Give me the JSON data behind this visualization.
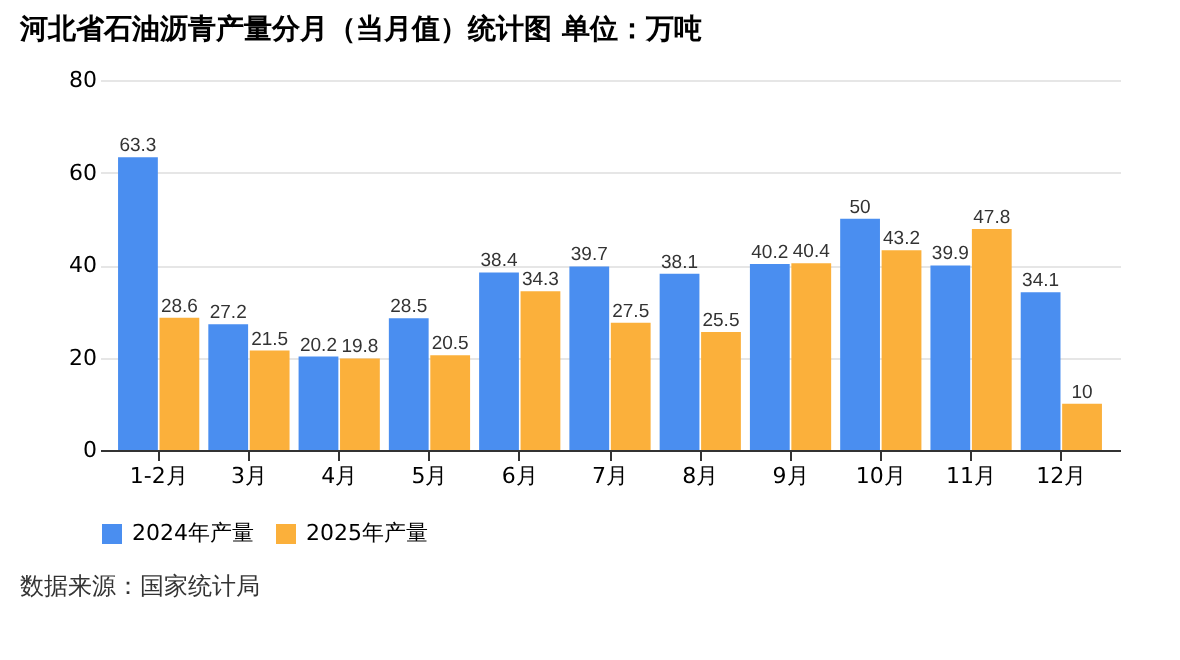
{
  "chart_data": {
    "type": "bar",
    "title": "河北省石油沥青产量分月（当月值）统计图 单位：万吨",
    "categories": [
      "1-2月",
      "3月",
      "4月",
      "5月",
      "6月",
      "7月",
      "8月",
      "9月",
      "10月",
      "11月",
      "12月"
    ],
    "series": [
      {
        "name": "2024年产量",
        "color": "#4a8ef0",
        "values": [
          63.3,
          27.2,
          20.2,
          28.5,
          38.4,
          39.7,
          38.1,
          40.2,
          50,
          39.9,
          34.1
        ]
      },
      {
        "name": "2025年产量",
        "color": "#fbb03b",
        "values": [
          28.6,
          21.5,
          19.8,
          20.5,
          34.3,
          27.5,
          25.5,
          40.4,
          43.2,
          47.8,
          10
        ]
      }
    ],
    "ylim": [
      0,
      80
    ],
    "yticks": [
      0,
      20,
      40,
      60,
      80
    ],
    "grid": "y",
    "legend": "bottom",
    "data_labels": true,
    "annotations": [
      "数据来源：国家统计局"
    ]
  }
}
